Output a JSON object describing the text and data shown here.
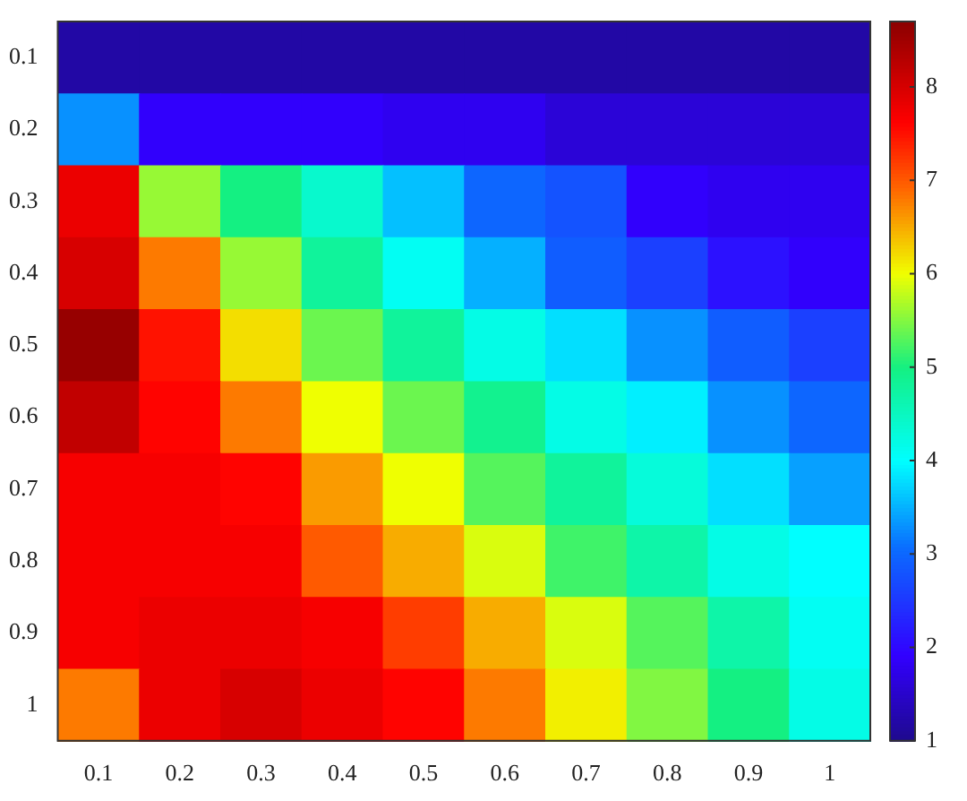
{
  "chart_data": {
    "type": "heatmap",
    "categories": [
      "0.1",
      "0.2",
      "0.3",
      "0.4",
      "0.5",
      "0.6",
      "0.7",
      "0.8",
      "0.9",
      "1"
    ],
    "y_categories": [
      "0.1",
      "0.2",
      "0.3",
      "0.4",
      "0.5",
      "0.6",
      "0.7",
      "0.8",
      "0.9",
      "1"
    ],
    "cells": [
      [
        1.2,
        1.2,
        1.2,
        1.2,
        1.2,
        1.2,
        1.2,
        1.2,
        1.2,
        1.2
      ],
      [
        3.3,
        1.9,
        1.9,
        1.9,
        1.8,
        1.8,
        1.6,
        1.6,
        1.6,
        1.6
      ],
      [
        7.8,
        5.6,
        5.0,
        4.4,
        3.6,
        3.0,
        2.8,
        1.9,
        1.8,
        1.8
      ],
      [
        8.0,
        6.8,
        5.6,
        4.8,
        4.1,
        3.5,
        2.9,
        2.6,
        2.1,
        1.9
      ],
      [
        8.6,
        7.5,
        6.2,
        5.4,
        4.8,
        4.2,
        3.8,
        3.3,
        2.9,
        2.6
      ],
      [
        8.2,
        7.6,
        6.8,
        6.0,
        5.4,
        4.9,
        4.2,
        3.9,
        3.3,
        3.0
      ],
      [
        7.7,
        7.7,
        7.6,
        6.6,
        6.0,
        5.3,
        4.8,
        4.3,
        3.8,
        3.4
      ],
      [
        7.7,
        7.7,
        7.7,
        7.0,
        6.5,
        5.9,
        5.2,
        4.7,
        4.2,
        4.0
      ],
      [
        7.7,
        7.8,
        7.8,
        7.7,
        7.2,
        6.5,
        5.9,
        5.3,
        4.7,
        4.1
      ],
      [
        6.8,
        7.8,
        8.0,
        7.8,
        7.6,
        6.8,
        6.1,
        5.5,
        5.0,
        4.2
      ]
    ],
    "clim": [
      1,
      8.7
    ],
    "cticks": [
      1,
      2,
      3,
      4,
      5,
      6,
      7,
      8
    ]
  }
}
